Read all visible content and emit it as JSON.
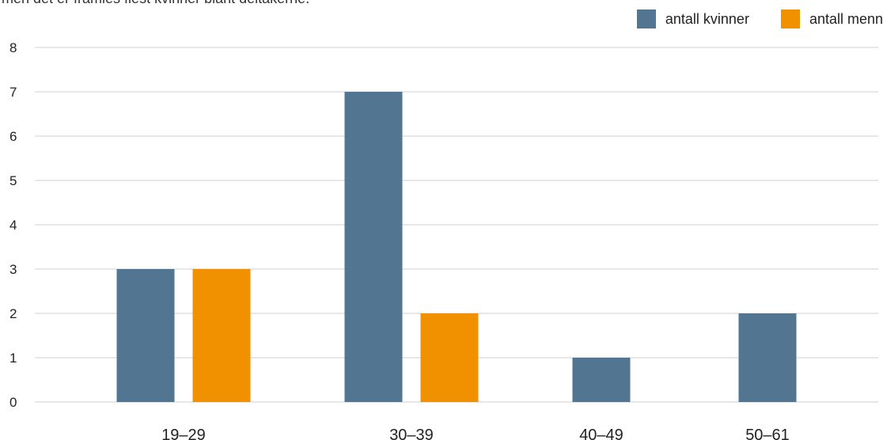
{
  "intro_text": "men det er framles flest kvinner blant deltakerne.",
  "chart_data": {
    "type": "bar",
    "categories": [
      "19–29",
      "30–39",
      "40–49",
      "50–61"
    ],
    "series": [
      {
        "name": "antall kvinner",
        "values": [
          3,
          7,
          1,
          2
        ],
        "color": "#527591"
      },
      {
        "name": "antall menn",
        "values": [
          3,
          2,
          0,
          0
        ],
        "color": "#f29100"
      }
    ],
    "ylim": [
      0,
      8
    ],
    "yticks": [
      "0",
      "1",
      "2",
      "3",
      "4",
      "5",
      "6",
      "7",
      "8"
    ],
    "grid": true,
    "legend_position": "top-right"
  }
}
